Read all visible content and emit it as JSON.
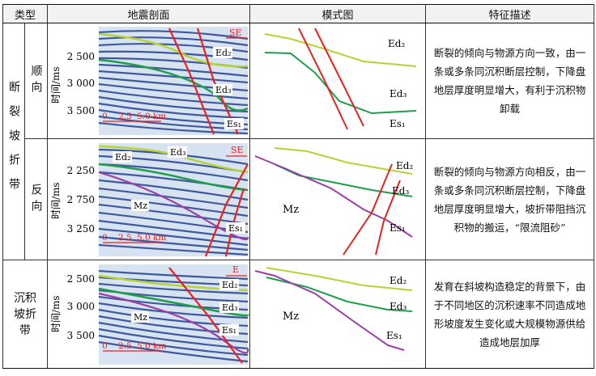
{
  "headers": {
    "type": "类型",
    "seismic": "地震剖面",
    "model": "模式图",
    "features": "特征描述"
  },
  "slope_group_label": "断裂坡折带",
  "rows": [
    {
      "type": "顺向",
      "desc": "断裂的倾向与物源方向一致，由一条或多条同沉积断层控制，下降盘地层厚度明显增大，有利于沉积物卸载",
      "ticks": [
        "2 500",
        "3 000",
        "3 500"
      ],
      "axis_label": "时间/ms",
      "arrow_text": "SE",
      "scale": [
        "0",
        "2.5",
        "5.0 km"
      ],
      "seis_labels": {
        "a": "Ed₂",
        "b": "Ed₃",
        "c": "Es₁"
      },
      "model_labels": {
        "a": "Ed₂",
        "b": "Ed₃",
        "c": "Es₁"
      }
    },
    {
      "type": "反向",
      "desc": "断裂的倾向与物源方向相反，由一条或多条同沉积断层控制，下降盘地层厚度明显增大，坡折带阻挡沉积物的搬运，“限流阻砂”",
      "ticks": [
        "2 250",
        "2 750",
        "3 250"
      ],
      "axis_label": "时间/ms",
      "arrow_text": "SE",
      "scale": [
        "0",
        "2.5",
        "5.0 km"
      ],
      "seis_labels": {
        "a": "Ed₂",
        "b": "Ed₃",
        "mz": "Mz",
        "c": "Es₁"
      },
      "model_labels": {
        "mz": "Mz",
        "a": "Ed₂",
        "b": "Ed₃",
        "c": "Es₁"
      }
    },
    {
      "type": "沉积坡折带",
      "desc": "发育在斜坡构造稳定的背景下，由于不同地区的沉积速率不同造成地形坡度发生变化或大规模物源供给造成地层加厚",
      "ticks": [
        "2 500",
        "3 000",
        "3 500"
      ],
      "axis_label": "时间/ms",
      "arrow_text": "E",
      "scale": [
        "0",
        "2.5",
        "5.0 km"
      ],
      "seis_labels": {
        "a": "Ed₂",
        "b": "Ed₃",
        "mz": "Mz",
        "c": "Es₁"
      },
      "model_labels": {
        "mz": "Mz",
        "a": "Ed₂",
        "b": "Ed₃",
        "c": "Es₁"
      }
    }
  ],
  "colors": {
    "ed2_line": "#b5d334",
    "ed3_line": "#1f9e4a",
    "es1_line": "#9b3fa6",
    "fault": "#e8221f",
    "seismic_bg": "#d8e3f2",
    "seismic_stripe": "#24408f"
  }
}
